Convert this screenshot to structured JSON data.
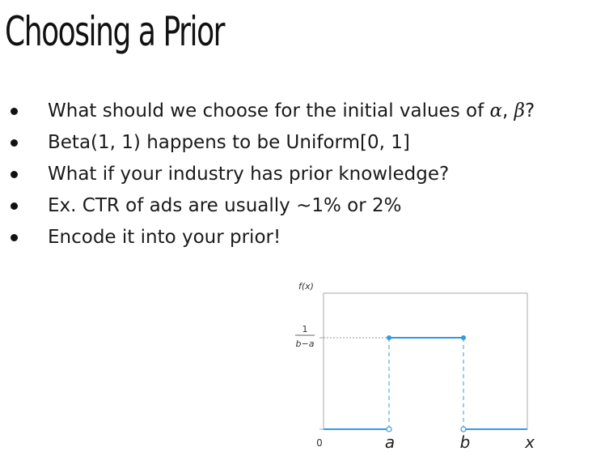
{
  "slide": {
    "title": "Choosing a Prior",
    "bullets": [
      {
        "text": "What should we choose for the initial values of ",
        "tail_parts": [
          "α",
          ", ",
          "β",
          "?"
        ]
      },
      {
        "text": "Beta(1, 1) happens to be Uniform[0, 1]"
      },
      {
        "text": "What if your industry has prior knowledge?"
      },
      {
        "text": "Ex. CTR of ads are usually ~1% or 2%"
      },
      {
        "text": "Encode it into your prior!"
      }
    ]
  },
  "figure": {
    "y_label": "f(x)",
    "height_numerator": "1",
    "height_denominator": "b−a",
    "origin_label": "0",
    "a_label": "a",
    "b_label": "b",
    "x_label": "x",
    "colors": {
      "line": "#2f9be8",
      "frame": "#aaaaaa",
      "dotted": "#999999"
    }
  }
}
